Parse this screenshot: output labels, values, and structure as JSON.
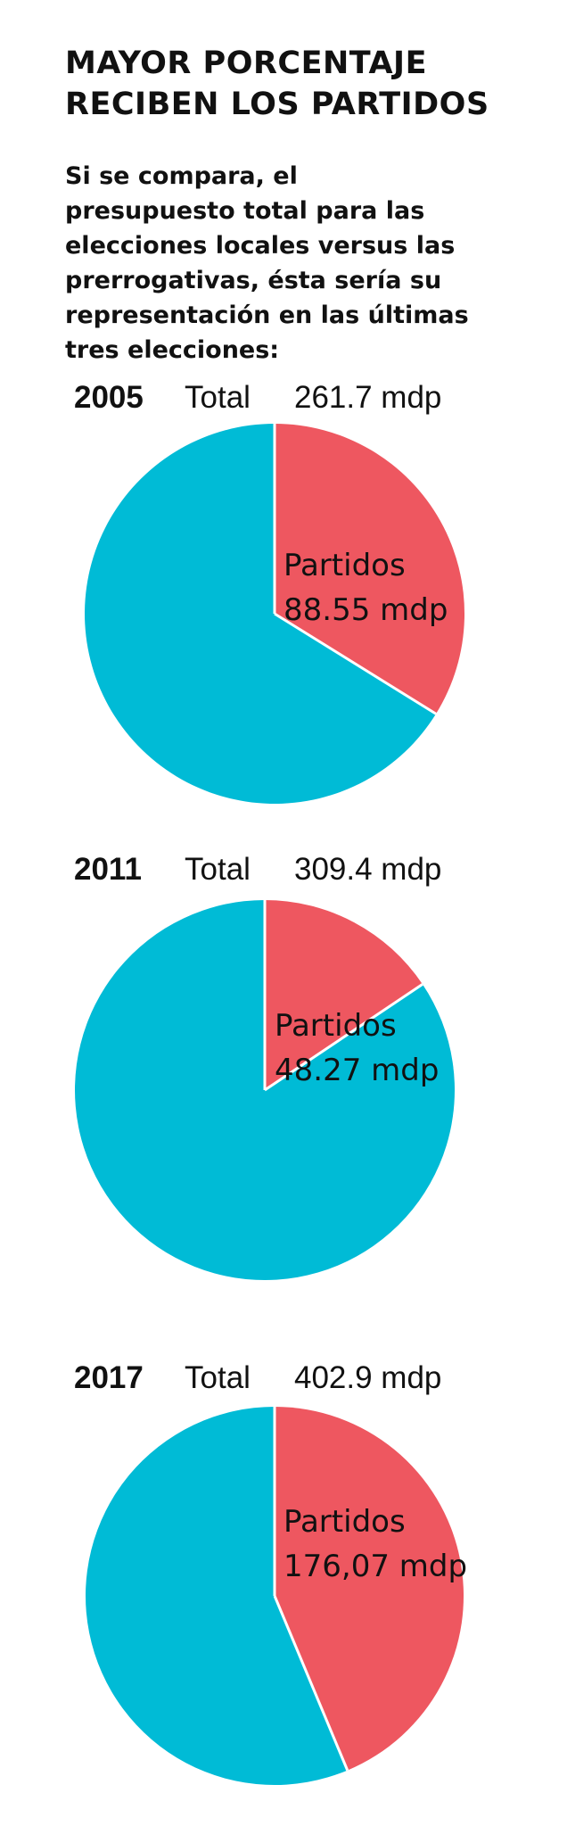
{
  "title_lines": [
    "MAYOR PORCENTAJE",
    "RECIBEN LOS PARTIDOS"
  ],
  "subtitle_lines": [
    "Si se compara, el",
    "presupuesto total para las",
    "elecciones locales versus las",
    "prerrogativas, ésta sería su",
    "representación en las últimas",
    "tres elecciones:"
  ],
  "colors": {
    "partidos": "#ee5760",
    "resto": "#00bbd6",
    "separator": "#ffffff"
  },
  "chart_data": [
    {
      "type": "pie",
      "year": "2005",
      "total_label": "Total",
      "total_value": 261.7,
      "total_text": "261.7 mdp",
      "slices": [
        {
          "name": "Partidos",
          "value": 88.55,
          "text": "88.55 mdp",
          "color": "#ee5760"
        },
        {
          "name": "",
          "value": 173.15,
          "text": "",
          "color": "#00bbd6"
        }
      ]
    },
    {
      "type": "pie",
      "year": "2011",
      "total_label": "Total",
      "total_value": 309.4,
      "total_text": "309.4 mdp",
      "slices": [
        {
          "name": "Partidos",
          "value": 48.27,
          "text": "48.27 mdp",
          "color": "#ee5760"
        },
        {
          "name": "",
          "value": 261.13,
          "text": "",
          "color": "#00bbd6"
        }
      ]
    },
    {
      "type": "pie",
      "year": "2017",
      "total_label": "Total",
      "total_value": 402.9,
      "total_text": "402.9 mdp",
      "slices": [
        {
          "name": "Partidos",
          "value": 176.07,
          "text": "176,07 mdp",
          "color": "#ee5760"
        },
        {
          "name": "",
          "value": 226.83,
          "text": "",
          "color": "#00bbd6"
        }
      ]
    }
  ]
}
